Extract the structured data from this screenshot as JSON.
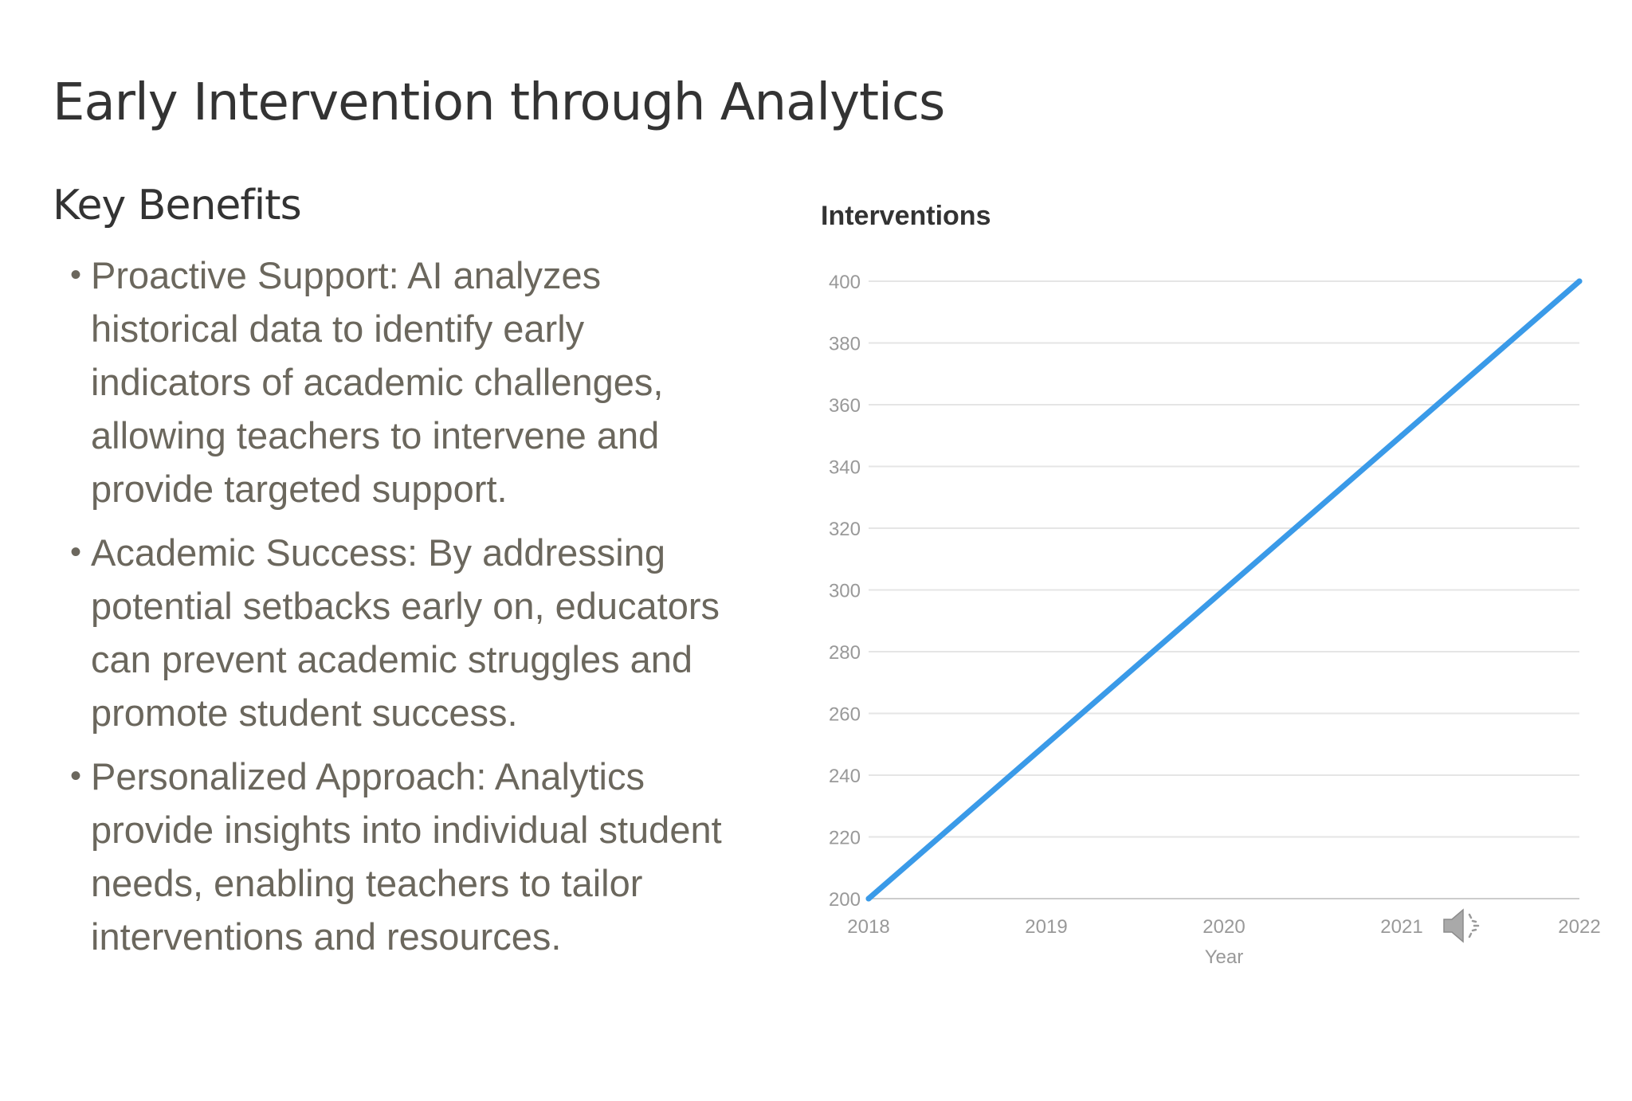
{
  "slide": {
    "title": "Early Intervention through Analytics",
    "section_heading": "Key Benefits",
    "benefits": [
      "Proactive Support: AI analyzes historical data to identify early indicators of academic challenges, allowing teachers to intervene and provide targeted support.",
      "Academic Success: By addressing potential setbacks early on, educators can prevent academic struggles and promote student success.",
      "Personalized Approach: Analytics provide insights into individual student needs, enabling teachers to tailor interventions and resources."
    ],
    "bullet_glyph": "•"
  },
  "icons": {
    "audio": "speaker-icon"
  },
  "colors": {
    "title": "#333333",
    "body_text": "#6b675d",
    "line": "#3a9ae8",
    "grid": "#e5e5e5",
    "tick_text": "#999999"
  },
  "chart_data": {
    "type": "line",
    "title": "Interventions",
    "xlabel": "Year",
    "ylabel": "",
    "x": [
      2018,
      2019,
      2020,
      2021,
      2022
    ],
    "series": [
      {
        "values": [
          200,
          250,
          300,
          350,
          400
        ]
      }
    ],
    "x_ticks": [
      "2018",
      "2019",
      "2020",
      "2021",
      "2022"
    ],
    "y_ticks": [
      200,
      220,
      240,
      260,
      280,
      300,
      320,
      340,
      360,
      380,
      400
    ],
    "ylim": [
      200,
      400
    ],
    "xlim": [
      2018,
      2022
    ],
    "grid": true,
    "legend": "none"
  }
}
